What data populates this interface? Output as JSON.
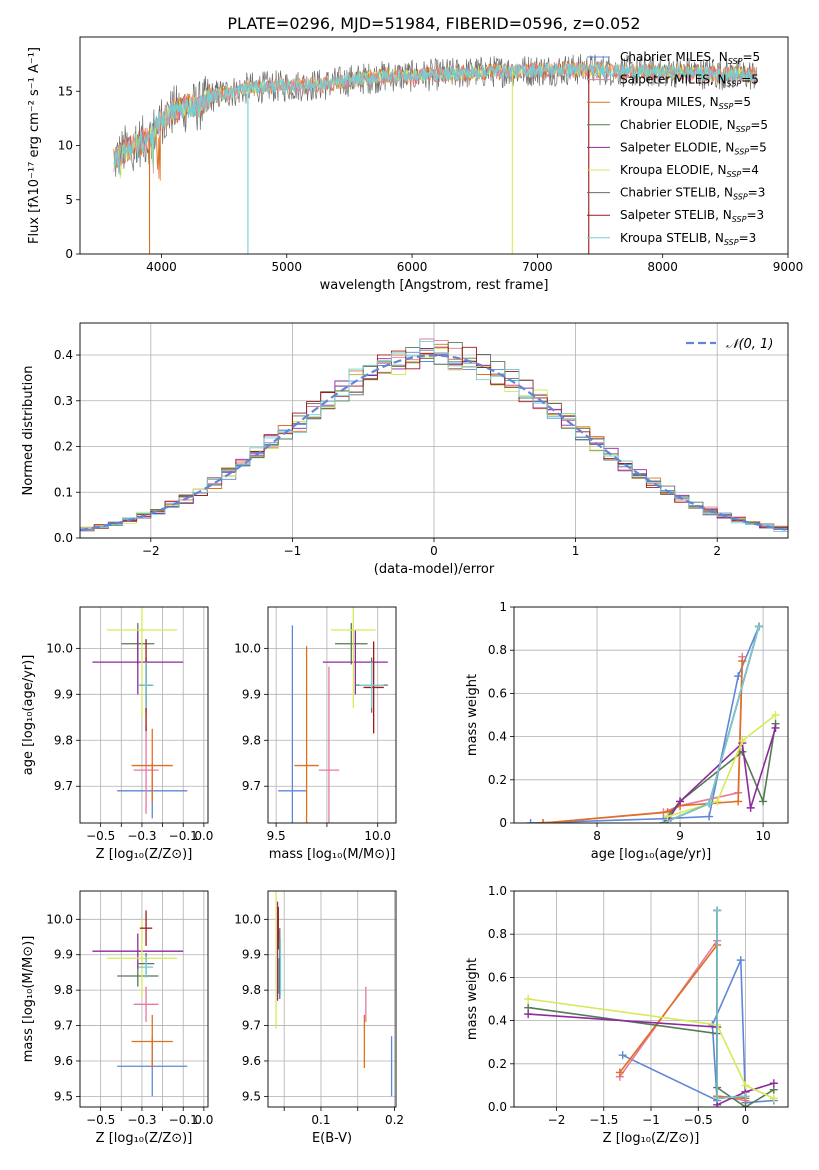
{
  "title": "PLATE=0296, MJD=51984, FIBERID=0596, z=0.052",
  "palette": {
    "chabrier_miles": "#5f87d8",
    "salpeter_miles": "#e8789f",
    "kroupa_miles": "#e07020",
    "chabrier_elodie": "#557a55",
    "salpeter_elodie": "#8e2a9e",
    "kroupa_elodie": "#d6ea58",
    "chabrier_stelib": "#6c6c6c",
    "salpeter_stelib": "#a01818",
    "kroupa_stelib": "#70d0d6",
    "normal": "#5f87d8",
    "grid": "#b0b0b0"
  },
  "chart_data": [
    {
      "id": "spectrum",
      "type": "line",
      "xlabel": "wavelength [Angstrom, rest frame]",
      "ylabel": "Flux [fλ10⁻¹⁷ erg cm⁻² s⁻¹ A⁻¹]",
      "xlim": [
        3350,
        9000
      ],
      "ylim": [
        0,
        20
      ],
      "xticks": [
        4000,
        5000,
        6000,
        7000,
        8000,
        9000
      ],
      "yticks": [
        0,
        5,
        10,
        15
      ],
      "grid": false,
      "legend_position": "top-right",
      "continuum": {
        "x": [
          3620,
          3700,
          3800,
          3900,
          4000,
          4100,
          4200,
          4300,
          4400,
          4500,
          4700,
          5000,
          5300,
          5500,
          5800,
          6000,
          6300,
          6600,
          6900,
          7200,
          7500,
          7800,
          8100,
          8400,
          8750
        ],
        "y": [
          8.5,
          9.5,
          10.2,
          10.6,
          12.4,
          13.2,
          13.5,
          13.6,
          14.5,
          14.8,
          15.3,
          15.5,
          15.6,
          16.0,
          16.4,
          16.4,
          16.6,
          16.8,
          16.9,
          17.0,
          17.0,
          16.8,
          16.8,
          16.6,
          16.5
        ]
      },
      "dropouts": [
        {
          "x": 3905,
          "y": 0,
          "series": "Kroupa MILES"
        },
        {
          "x": 4690,
          "y": 0,
          "series": "Kroupa STELIB"
        },
        {
          "x": 6800,
          "y": 0,
          "series": "Kroupa ELODIE"
        },
        {
          "x": 7410,
          "y": 0,
          "series": "Salpeter STELIB"
        }
      ],
      "legend": [
        {
          "name": "Chabrier MILES",
          "nssp": "5",
          "key": "chabrier_miles"
        },
        {
          "name": "Salpeter MILES",
          "nssp": "5",
          "key": "salpeter_miles"
        },
        {
          "name": "Kroupa MILES",
          "nssp": "5",
          "key": "kroupa_miles"
        },
        {
          "name": "Chabrier ELODIE",
          "nssp": "5",
          "key": "chabrier_elodie"
        },
        {
          "name": "Salpeter ELODIE",
          "nssp": "5",
          "key": "salpeter_elodie"
        },
        {
          "name": "Kroupa ELODIE",
          "nssp": "4",
          "key": "kroupa_elodie"
        },
        {
          "name": "Chabrier STELIB",
          "nssp": "3",
          "key": "chabrier_stelib"
        },
        {
          "name": "Salpeter STELIB",
          "nssp": "3",
          "key": "salpeter_stelib"
        },
        {
          "name": "Kroupa STELIB",
          "nssp": "3",
          "key": "kroupa_stelib"
        }
      ]
    },
    {
      "id": "residuals",
      "type": "line",
      "xlabel": "(data-model)/error",
      "ylabel": "Normed distribution",
      "xlim": [
        -2.5,
        2.5
      ],
      "ylim": [
        0,
        0.47
      ],
      "xticks": [
        -2,
        -1,
        0,
        1,
        2
      ],
      "yticks": [
        0.0,
        0.1,
        0.2,
        0.3,
        0.4
      ],
      "grid": true,
      "legend_position": "top-right",
      "legend_label": "𝒩(0, 1)",
      "bin_width": 0.1
    },
    {
      "id": "age_vs_z",
      "type": "scatter",
      "xlabel": "Z [log₁₀(Z/Z⊙)]",
      "ylabel": "age  [log₁₀(age/yr)]",
      "xlim": [
        -0.6,
        0.02
      ],
      "ylim": [
        9.62,
        10.09
      ],
      "xticks": [
        -0.5,
        -0.4,
        -0.3,
        -0.2,
        -0.1,
        0.0
      ],
      "xticklabels": [
        "-0.5",
        "",
        "-0.3",
        "",
        "-0.1",
        "0.0"
      ],
      "yticks": [
        9.7,
        9.8,
        9.9,
        10.0
      ],
      "grid": true,
      "points": [
        {
          "key": "chabrier_miles",
          "x": -0.25,
          "y": 9.69,
          "xerr": 0.17,
          "yerr": 0.06
        },
        {
          "key": "salpeter_miles",
          "x": -0.28,
          "y": 9.735,
          "xerr": 0.06,
          "yerr": 0.095
        },
        {
          "key": "kroupa_miles",
          "x": -0.25,
          "y": 9.745,
          "xerr": 0.1,
          "yerr": 0.08
        },
        {
          "key": "chabrier_elodie",
          "x": -0.32,
          "y": 10.01,
          "xerr": 0.08,
          "yerr": 0.045
        },
        {
          "key": "salpeter_elodie",
          "x": -0.32,
          "y": 9.97,
          "xerr": 0.22,
          "yerr": 0.07
        },
        {
          "key": "kroupa_elodie",
          "x": -0.3,
          "y": 10.04,
          "xerr": 0.17,
          "yerr": 0.19
        },
        {
          "key": "chabrier_stelib",
          "x": -0.28,
          "y": 9.92,
          "xerr": 0.035,
          "yerr": 0.06
        },
        {
          "key": "salpeter_stelib",
          "x": -0.28,
          "y": 9.92,
          "xerr": 0.03,
          "yerr": 0.1
        },
        {
          "key": "kroupa_stelib",
          "x": -0.28,
          "y": 9.92,
          "xerr": 0.035,
          "yerr": 0.05
        }
      ]
    },
    {
      "id": "age_vs_mass",
      "type": "scatter",
      "xlabel": "mass [log₁₀(M/M⊙)]",
      "ylabel": "",
      "xlim": [
        9.46,
        10.09
      ],
      "ylim": [
        9.62,
        10.09
      ],
      "xticks": [
        9.5,
        9.75,
        10.0
      ],
      "xticklabels": [
        "9.5",
        "",
        "10.0"
      ],
      "yticks": [
        9.7,
        9.8,
        9.9,
        10.0
      ],
      "grid": true,
      "points": [
        {
          "key": "chabrier_miles",
          "x": 9.58,
          "y": 9.69,
          "xerr": 0.07,
          "yerr": 0.36
        },
        {
          "key": "salpeter_miles",
          "x": 9.76,
          "y": 9.735,
          "xerr": 0.05,
          "yerr": 0.225
        },
        {
          "key": "kroupa_miles",
          "x": 9.65,
          "y": 9.745,
          "xerr": 0.06,
          "yerr": 0.26
        },
        {
          "key": "chabrier_elodie",
          "x": 9.87,
          "y": 10.01,
          "xerr": 0.08,
          "yerr": 0.045
        },
        {
          "key": "salpeter_elodie",
          "x": 9.89,
          "y": 9.97,
          "xerr": 0.16,
          "yerr": 0.07
        },
        {
          "key": "kroupa_elodie",
          "x": 9.88,
          "y": 10.04,
          "xerr": 0.11,
          "yerr": 0.17
        },
        {
          "key": "chabrier_stelib",
          "x": 9.97,
          "y": 9.92,
          "xerr": 0.08,
          "yerr": 0.06
        },
        {
          "key": "salpeter_stelib",
          "x": 9.98,
          "y": 9.915,
          "xerr": 0.05,
          "yerr": 0.1
        },
        {
          "key": "kroupa_stelib",
          "x": 9.97,
          "y": 9.92,
          "xerr": 0.06,
          "yerr": 0.05
        }
      ]
    },
    {
      "id": "weight_vs_age",
      "type": "line",
      "xlabel": "age  [log₁₀(age/yr)]",
      "ylabel": "mass weight",
      "xlim": [
        7.0,
        10.3
      ],
      "ylim": [
        0,
        1.0
      ],
      "xticks": [
        8,
        9,
        10
      ],
      "yticks": [
        0.0,
        0.2,
        0.4,
        0.6,
        0.8,
        1.0
      ],
      "grid": true,
      "series": [
        {
          "key": "chabrier_miles",
          "x": [
            7.2,
            8.8,
            9.35,
            9.7,
            9.95
          ],
          "y": [
            0.0,
            0.02,
            0.03,
            0.68,
            0.91
          ]
        },
        {
          "key": "salpeter_miles",
          "x": [
            7.35,
            8.8,
            9.0,
            9.7,
            9.75
          ],
          "y": [
            0.0,
            0.05,
            0.08,
            0.14,
            0.77
          ]
        },
        {
          "key": "kroupa_miles",
          "x": [
            7.35,
            8.85,
            9.0,
            9.7,
            9.75
          ],
          "y": [
            0.0,
            0.05,
            0.08,
            0.1,
            0.75
          ]
        },
        {
          "key": "chabrier_elodie",
          "x": [
            8.85,
            9.0,
            9.75,
            10.0,
            10.15
          ],
          "y": [
            0.03,
            0.1,
            0.33,
            0.1,
            0.46
          ]
        },
        {
          "key": "salpeter_elodie",
          "x": [
            8.85,
            9.0,
            9.75,
            9.85,
            10.15
          ],
          "y": [
            0.01,
            0.1,
            0.37,
            0.07,
            0.44
          ]
        },
        {
          "key": "kroupa_elodie",
          "x": [
            8.85,
            9.45,
            9.75,
            10.15
          ],
          "y": [
            0.03,
            0.1,
            0.38,
            0.5
          ]
        },
        {
          "key": "chabrier_stelib",
          "x": [
            8.8,
            9.35,
            9.95
          ],
          "y": [
            0.0,
            0.09,
            0.91
          ]
        },
        {
          "key": "salpeter_stelib",
          "x": [
            8.8,
            9.35,
            9.95
          ],
          "y": [
            0.0,
            0.09,
            0.91
          ]
        },
        {
          "key": "kroupa_stelib",
          "x": [
            8.8,
            9.35,
            9.95
          ],
          "y": [
            0.0,
            0.09,
            0.91
          ]
        }
      ]
    },
    {
      "id": "mass_vs_z",
      "type": "scatter",
      "xlabel": "Z [log₁₀(Z/Z⊙)]",
      "ylabel": "mass [log₁₀(M/M⊙)]",
      "xlim": [
        -0.6,
        0.02
      ],
      "ylim": [
        9.47,
        10.08
      ],
      "xticks": [
        -0.5,
        -0.4,
        -0.3,
        -0.2,
        -0.1,
        0.0
      ],
      "xticklabels": [
        "-0.5",
        "",
        "-0.3",
        "",
        "-0.1",
        "0.0"
      ],
      "yticks": [
        9.5,
        9.6,
        9.7,
        9.8,
        9.9,
        10.0
      ],
      "grid": true,
      "points": [
        {
          "key": "chabrier_miles",
          "x": -0.25,
          "y": 9.585,
          "xerr": 0.17,
          "yerr": 0.085
        },
        {
          "key": "salpeter_miles",
          "x": -0.28,
          "y": 9.76,
          "xerr": 0.06,
          "yerr": 0.05
        },
        {
          "key": "kroupa_miles",
          "x": -0.25,
          "y": 9.655,
          "xerr": 0.1,
          "yerr": 0.075
        },
        {
          "key": "chabrier_elodie",
          "x": -0.32,
          "y": 9.84,
          "xerr": 0.1,
          "yerr": 0.03
        },
        {
          "key": "salpeter_elodie",
          "x": -0.32,
          "y": 9.91,
          "xerr": 0.22,
          "yerr": 0.05
        },
        {
          "key": "kroupa_elodie",
          "x": -0.3,
          "y": 9.89,
          "xerr": 0.17,
          "yerr": 0.11
        },
        {
          "key": "chabrier_stelib",
          "x": -0.28,
          "y": 9.875,
          "xerr": 0.04,
          "yerr": 0.03
        },
        {
          "key": "salpeter_stelib",
          "x": -0.28,
          "y": 9.975,
          "xerr": 0.03,
          "yerr": 0.05
        },
        {
          "key": "kroupa_stelib",
          "x": -0.28,
          "y": 9.865,
          "xerr": 0.035,
          "yerr": 0.03
        }
      ]
    },
    {
      "id": "mass_vs_ebv",
      "type": "scatter",
      "xlabel": "E(B-V)",
      "ylabel": "",
      "xlim": [
        0.028,
        0.202
      ],
      "ylim": [
        9.47,
        10.08
      ],
      "xticks": [
        0.05,
        0.1,
        0.15,
        0.2
      ],
      "xticklabels": [
        "",
        "0.1",
        "",
        "0.2"
      ],
      "yticks": [
        9.5,
        9.6,
        9.7,
        9.8,
        9.9,
        10.0
      ],
      "grid": true,
      "points": [
        {
          "key": "chabrier_miles",
          "x": 0.196,
          "y": 9.585,
          "xerr": 0,
          "yerr": 0.085
        },
        {
          "key": "salpeter_miles",
          "x": 0.161,
          "y": 9.76,
          "xerr": 0,
          "yerr": 0.05
        },
        {
          "key": "kroupa_miles",
          "x": 0.159,
          "y": 9.655,
          "xerr": 0,
          "yerr": 0.075
        },
        {
          "key": "chabrier_elodie",
          "x": 0.043,
          "y": 9.84,
          "xerr": 0,
          "yerr": 0.05
        },
        {
          "key": "salpeter_elodie",
          "x": 0.041,
          "y": 9.91,
          "xerr": 0,
          "yerr": 0.14
        },
        {
          "key": "kroupa_elodie",
          "x": 0.039,
          "y": 9.89,
          "xerr": 0,
          "yerr": 0.2
        },
        {
          "key": "chabrier_stelib",
          "x": 0.044,
          "y": 9.875,
          "xerr": 0,
          "yerr": 0.1
        },
        {
          "key": "salpeter_stelib",
          "x": 0.042,
          "y": 9.975,
          "xerr": 0,
          "yerr": 0.06
        },
        {
          "key": "kroupa_stelib",
          "x": 0.045,
          "y": 9.865,
          "xerr": 0,
          "yerr": 0.08
        }
      ]
    },
    {
      "id": "weight_vs_z",
      "type": "line",
      "xlabel": "Z [log₁₀(Z/Z⊙)]",
      "ylabel": "mass weight",
      "xlim": [
        -2.45,
        0.45
      ],
      "ylim": [
        0,
        1.0
      ],
      "xticks": [
        -2.0,
        -1.5,
        -1.0,
        -0.5,
        0.0
      ],
      "yticks": [
        0.0,
        0.2,
        0.4,
        0.6,
        0.8,
        1.0
      ],
      "grid": true,
      "series": [
        {
          "key": "chabrier_miles",
          "x": [
            -1.3,
            -0.3,
            -0.35,
            -0.05,
            0.0,
            0.3
          ],
          "y": [
            0.24,
            0.03,
            0.38,
            0.68,
            0.02,
            0.03
          ]
        },
        {
          "key": "salpeter_miles",
          "x": [
            -1.33,
            -0.3,
            -0.3,
            0.0
          ],
          "y": [
            0.14,
            0.77,
            0.05,
            0.03
          ]
        },
        {
          "key": "kroupa_miles",
          "x": [
            -1.33,
            -0.3,
            -0.3,
            0.0
          ],
          "y": [
            0.16,
            0.75,
            0.05,
            0.04
          ]
        },
        {
          "key": "chabrier_elodie",
          "x": [
            -2.3,
            -0.3,
            -0.3,
            0.0,
            0.3
          ],
          "y": [
            0.46,
            0.34,
            0.09,
            0.0,
            0.08
          ]
        },
        {
          "key": "salpeter_elodie",
          "x": [
            -2.3,
            -0.3,
            -0.3,
            0.0,
            0.3
          ],
          "y": [
            0.43,
            0.37,
            0.01,
            0.07,
            0.11
          ]
        },
        {
          "key": "kroupa_elodie",
          "x": [
            -2.3,
            -0.3,
            0.0,
            0.3
          ],
          "y": [
            0.5,
            0.38,
            0.1,
            0.04
          ]
        },
        {
          "key": "chabrier_stelib",
          "x": [
            -0.3,
            -0.3,
            0.0
          ],
          "y": [
            0.91,
            0.04,
            0.05
          ]
        },
        {
          "key": "salpeter_stelib",
          "x": [
            -0.3,
            -0.3,
            0.0
          ],
          "y": [
            0.91,
            0.04,
            0.05
          ]
        },
        {
          "key": "kroupa_stelib",
          "x": [
            -0.3,
            -0.3,
            0.0
          ],
          "y": [
            0.91,
            0.04,
            0.05
          ]
        }
      ]
    }
  ]
}
